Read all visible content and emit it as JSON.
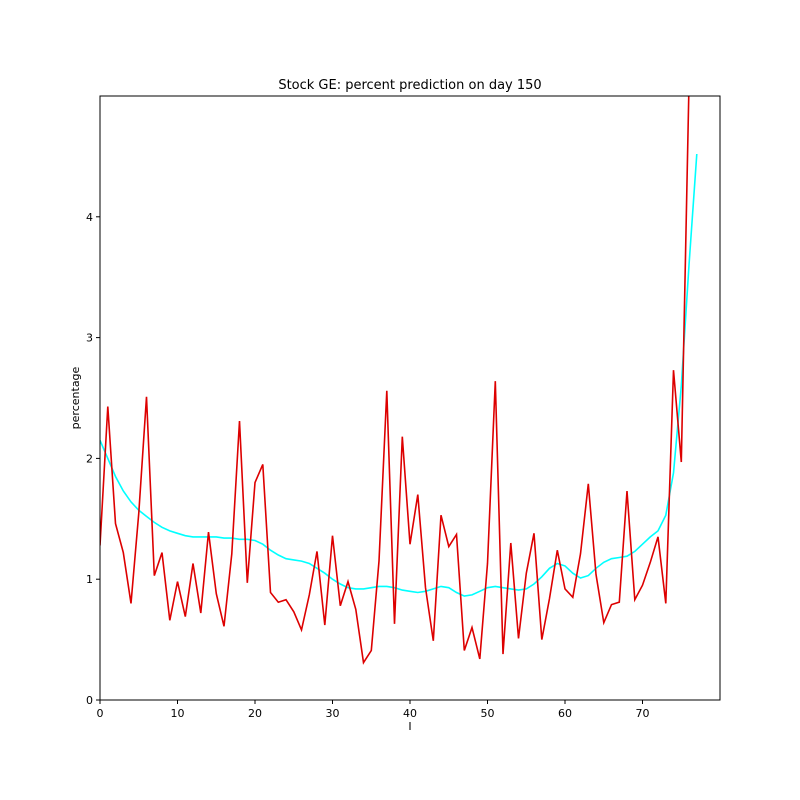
{
  "chart_data": {
    "type": "line",
    "title": "Stock GE: percent prediction on day 150",
    "xlabel": "I",
    "ylabel": "percentage",
    "xlim": [
      0,
      80
    ],
    "ylim": [
      0,
      5
    ],
    "xticks": [
      0,
      10,
      20,
      30,
      40,
      50,
      60,
      70
    ],
    "yticks": [
      0,
      1,
      2,
      3,
      4
    ],
    "grid": false,
    "series": [
      {
        "color": "#00ffff",
        "x": [
          0,
          1,
          2,
          3,
          4,
          5,
          6,
          7,
          8,
          9,
          10,
          11,
          12,
          13,
          14,
          15,
          16,
          17,
          18,
          19,
          20,
          21,
          22,
          23,
          24,
          25,
          26,
          27,
          28,
          29,
          30,
          31,
          32,
          33,
          34,
          35,
          36,
          37,
          38,
          39,
          40,
          41,
          42,
          43,
          44,
          45,
          46,
          47,
          48,
          49,
          50,
          51,
          52,
          53,
          54,
          55,
          56,
          57,
          58,
          59,
          60,
          61,
          62,
          63,
          64,
          65,
          66,
          67,
          68,
          69,
          70,
          71,
          72,
          73,
          74,
          75,
          76,
          77
        ],
        "y": [
          2.15,
          2.0,
          1.85,
          1.73,
          1.64,
          1.57,
          1.52,
          1.47,
          1.43,
          1.4,
          1.38,
          1.36,
          1.35,
          1.35,
          1.35,
          1.35,
          1.34,
          1.34,
          1.33,
          1.33,
          1.32,
          1.29,
          1.24,
          1.2,
          1.17,
          1.16,
          1.15,
          1.13,
          1.09,
          1.05,
          1.0,
          0.96,
          0.93,
          0.92,
          0.92,
          0.93,
          0.94,
          0.94,
          0.93,
          0.91,
          0.9,
          0.89,
          0.9,
          0.92,
          0.94,
          0.93,
          0.89,
          0.86,
          0.87,
          0.9,
          0.93,
          0.94,
          0.93,
          0.92,
          0.91,
          0.92,
          0.96,
          1.02,
          1.09,
          1.13,
          1.11,
          1.05,
          1.01,
          1.03,
          1.09,
          1.14,
          1.17,
          1.18,
          1.19,
          1.23,
          1.29,
          1.35,
          1.4,
          1.53,
          1.88,
          2.6,
          3.6,
          4.52
        ]
      },
      {
        "color": "#dd0000",
        "x": [
          0,
          1,
          2,
          3,
          4,
          5,
          6,
          7,
          8,
          9,
          10,
          11,
          12,
          13,
          14,
          15,
          16,
          17,
          18,
          19,
          20,
          21,
          22,
          23,
          24,
          25,
          26,
          27,
          28,
          29,
          30,
          31,
          32,
          33,
          34,
          35,
          36,
          37,
          38,
          39,
          40,
          41,
          42,
          43,
          44,
          45,
          46,
          47,
          48,
          49,
          50,
          51,
          52,
          53,
          54,
          55,
          56,
          57,
          58,
          59,
          60,
          61,
          62,
          63,
          64,
          65,
          66,
          67,
          68,
          69,
          70,
          71,
          72,
          73,
          74,
          75,
          76
        ],
        "y": [
          1.28,
          2.43,
          1.46,
          1.22,
          0.8,
          1.55,
          2.51,
          1.03,
          1.22,
          0.66,
          0.98,
          0.69,
          1.13,
          0.72,
          1.39,
          0.88,
          0.61,
          1.21,
          2.31,
          0.97,
          1.8,
          1.95,
          0.89,
          0.81,
          0.83,
          0.73,
          0.58,
          0.87,
          1.23,
          0.62,
          1.36,
          0.78,
          0.98,
          0.75,
          0.31,
          0.41,
          1.15,
          2.56,
          0.63,
          2.18,
          1.29,
          1.7,
          0.93,
          0.49,
          1.53,
          1.27,
          1.37,
          0.41,
          0.6,
          0.34,
          1.13,
          2.64,
          0.38,
          1.3,
          0.51,
          1.05,
          1.38,
          0.5,
          0.84,
          1.24,
          0.92,
          0.85,
          1.21,
          1.79,
          1.04,
          0.64,
          0.79,
          0.81,
          1.73,
          0.83,
          0.95,
          1.14,
          1.35,
          0.8,
          2.73,
          1.97,
          5.1
        ]
      }
    ]
  }
}
